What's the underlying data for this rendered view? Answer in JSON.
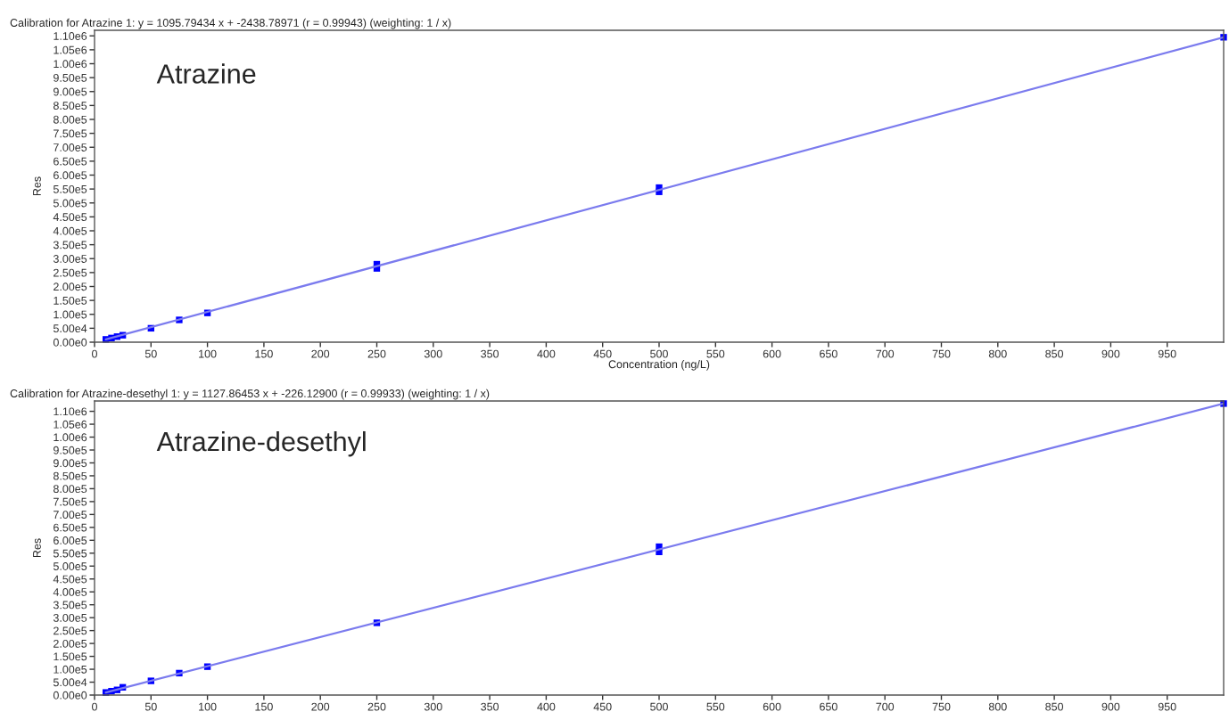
{
  "chart_data": [
    {
      "type": "scatter",
      "title": "Calibration for Atrazine 1: y = 1095.79434 x + -2438.78971 (r = 0.99943) (weighting: 1 / x)",
      "xlabel": "Concentration (ng/L)",
      "ylabel": "Res",
      "annotations": [
        "Atrazine"
      ],
      "xlim": [
        0,
        1000
      ],
      "xticks": [
        0,
        50,
        100,
        150,
        200,
        250,
        300,
        350,
        400,
        450,
        500,
        550,
        600,
        650,
        700,
        750,
        800,
        850,
        900,
        950
      ],
      "ylim": [
        0,
        1120000
      ],
      "yticks": [
        {
          "value": 0,
          "label": "0.00e0"
        },
        {
          "value": 50000,
          "label": "5.00e4"
        },
        {
          "value": 100000,
          "label": "1.00e5"
        },
        {
          "value": 150000,
          "label": "1.50e5"
        },
        {
          "value": 200000,
          "label": "2.00e5"
        },
        {
          "value": 250000,
          "label": "2.50e5"
        },
        {
          "value": 300000,
          "label": "3.00e5"
        },
        {
          "value": 350000,
          "label": "3.50e5"
        },
        {
          "value": 400000,
          "label": "4.00e5"
        },
        {
          "value": 450000,
          "label": "4.50e5"
        },
        {
          "value": 500000,
          "label": "5.00e5"
        },
        {
          "value": 550000,
          "label": "5.50e5"
        },
        {
          "value": 600000,
          "label": "6.00e5"
        },
        {
          "value": 650000,
          "label": "6.50e5"
        },
        {
          "value": 700000,
          "label": "7.00e5"
        },
        {
          "value": 750000,
          "label": "7.50e5"
        },
        {
          "value": 800000,
          "label": "8.00e5"
        },
        {
          "value": 850000,
          "label": "8.50e5"
        },
        {
          "value": 900000,
          "label": "9.00e5"
        },
        {
          "value": 950000,
          "label": "9.50e5"
        },
        {
          "value": 1000000,
          "label": "1.00e6"
        },
        {
          "value": 1050000,
          "label": "1.05e6"
        },
        {
          "value": 1100000,
          "label": "1.10e6"
        }
      ],
      "grid": false,
      "series": [
        {
          "type": "line",
          "color": "#7b7bee",
          "x": [
            10,
            1000
          ],
          "values": [
            10000,
            1095000
          ],
          "marker": "none",
          "line_style": "solid"
        },
        {
          "color": "#0000ff",
          "marker": "square",
          "x": [
            10,
            15,
            20,
            25,
            50,
            75,
            100,
            250,
            250,
            500,
            500,
            1000
          ],
          "values": [
            10000,
            15000,
            20000,
            25000,
            50000,
            80000,
            105000,
            265000,
            280000,
            540000,
            555000,
            1095000
          ]
        }
      ]
    },
    {
      "type": "scatter",
      "title": "Calibration for Atrazine-desethyl 1: y = 1127.86453 x + -226.12900 (r = 0.99933) (weighting: 1 / x)",
      "ylabel": "Res",
      "annotations": [
        "Atrazine-desethyl"
      ],
      "xlim": [
        0,
        1000
      ],
      "xticks": [
        0,
        50,
        100,
        150,
        200,
        250,
        300,
        350,
        400,
        450,
        500,
        550,
        600,
        650,
        700,
        750,
        800,
        850,
        900,
        950
      ],
      "ylim": [
        0,
        1140000
      ],
      "yticks": [
        {
          "value": 0,
          "label": "0.00e0"
        },
        {
          "value": 50000,
          "label": "5.00e4"
        },
        {
          "value": 100000,
          "label": "1.00e5"
        },
        {
          "value": 150000,
          "label": "1.50e5"
        },
        {
          "value": 200000,
          "label": "2.00e5"
        },
        {
          "value": 250000,
          "label": "2.50e5"
        },
        {
          "value": 300000,
          "label": "3.00e5"
        },
        {
          "value": 350000,
          "label": "3.50e5"
        },
        {
          "value": 400000,
          "label": "4.00e5"
        },
        {
          "value": 450000,
          "label": "4.50e5"
        },
        {
          "value": 500000,
          "label": "5.00e5"
        },
        {
          "value": 550000,
          "label": "5.50e5"
        },
        {
          "value": 600000,
          "label": "6.00e5"
        },
        {
          "value": 650000,
          "label": "6.50e5"
        },
        {
          "value": 700000,
          "label": "7.00e5"
        },
        {
          "value": 750000,
          "label": "7.50e5"
        },
        {
          "value": 800000,
          "label": "8.00e5"
        },
        {
          "value": 850000,
          "label": "8.50e5"
        },
        {
          "value": 900000,
          "label": "9.00e5"
        },
        {
          "value": 950000,
          "label": "9.50e5"
        },
        {
          "value": 1000000,
          "label": "1.00e6"
        },
        {
          "value": 1050000,
          "label": "1.05e6"
        },
        {
          "value": 1100000,
          "label": "1.10e6"
        }
      ],
      "grid": false,
      "series": [
        {
          "type": "line",
          "color": "#7b7bee",
          "x": [
            10,
            1000
          ],
          "values": [
            10000,
            1130000
          ],
          "marker": "none",
          "line_style": "solid"
        },
        {
          "color": "#0000ff",
          "marker": "square",
          "x": [
            10,
            15,
            20,
            25,
            50,
            75,
            100,
            250,
            500,
            500,
            1000
          ],
          "values": [
            10000,
            15000,
            20000,
            30000,
            55000,
            85000,
            110000,
            280000,
            555000,
            575000,
            1130000
          ]
        }
      ]
    }
  ]
}
